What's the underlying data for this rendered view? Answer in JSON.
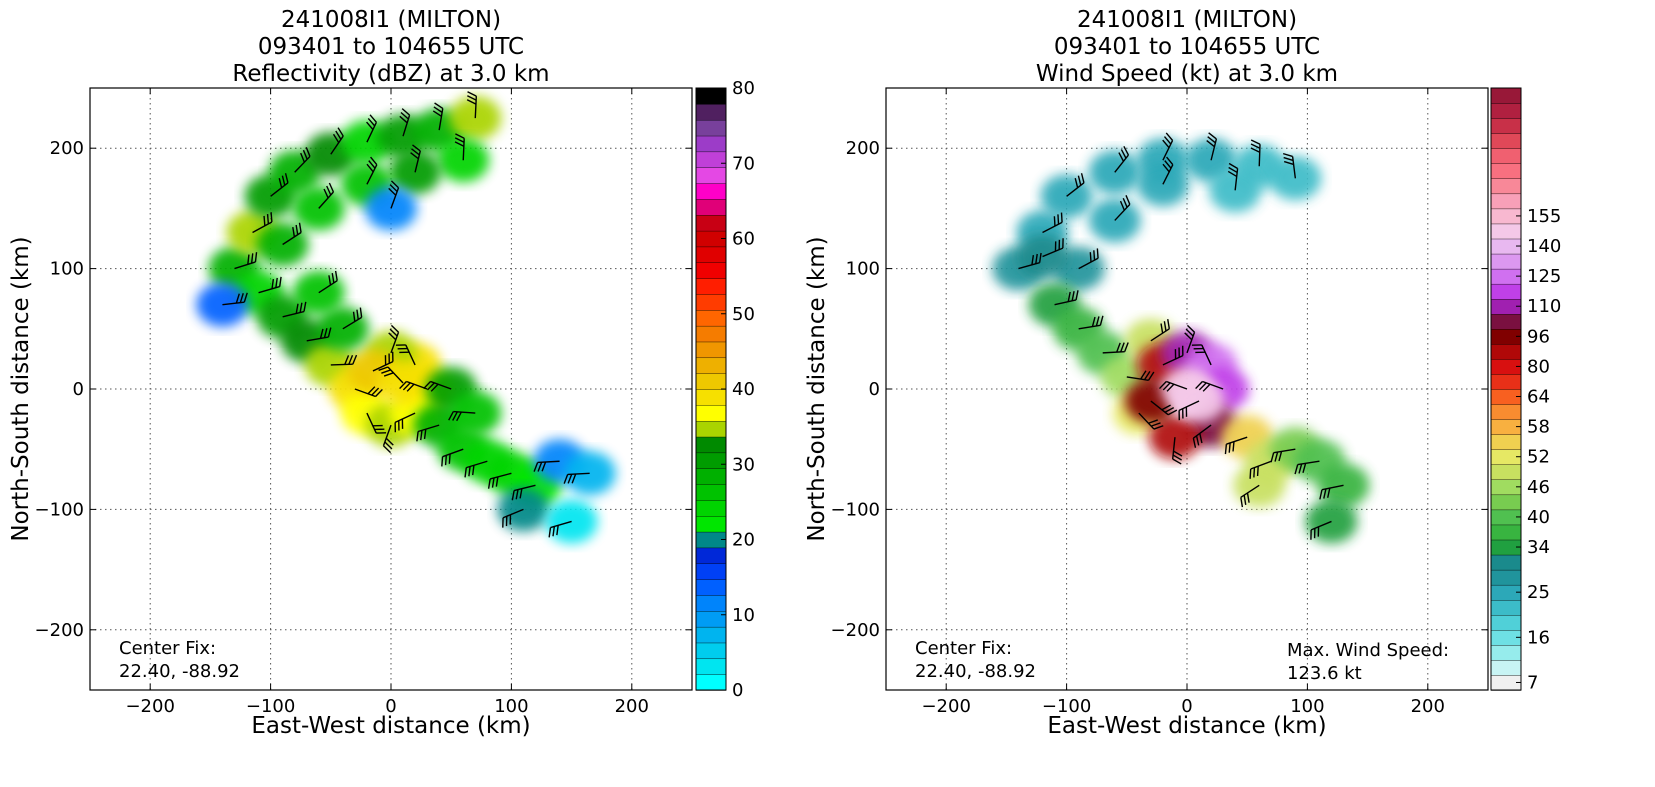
{
  "chart_data": [
    {
      "type": "heatmap",
      "title_lines": [
        "241008I1 (MILTON)",
        "093401 to 104655 UTC",
        "Reflectivity (dBZ) at 3.0 km"
      ],
      "xlabel": "East-West distance (km)",
      "ylabel": "North-South distance (km)",
      "xlim": [
        -250,
        250
      ],
      "ylim": [
        -250,
        250
      ],
      "xticks": [
        -200,
        -100,
        0,
        100,
        200
      ],
      "yticks": [
        -200,
        -100,
        0,
        100,
        200
      ],
      "xtick_labels": [
        "−200",
        "−100",
        "0",
        "100",
        "200"
      ],
      "ytick_labels": [
        "−200",
        "−100",
        "0",
        "100",
        "200"
      ],
      "grid": "dotted",
      "annotation": {
        "line1": "Center Fix:",
        "line2": "22.40, -88.92"
      },
      "colorbar": {
        "labels": [
          "0",
          "10",
          "20",
          "30",
          "40",
          "50",
          "60",
          "70",
          "80"
        ],
        "colors": [
          "#00ffff",
          "#00e5f0",
          "#00cdee",
          "#00b4ef",
          "#009cf5",
          "#0084fb",
          "#0060ff",
          "#0040f5",
          "#0028d8",
          "#008888",
          "#00e600",
          "#00d400",
          "#00c200",
          "#00b000",
          "#009c00",
          "#008a00",
          "#aad400",
          "#ffff00",
          "#f6e000",
          "#eec800",
          "#eeb000",
          "#f09600",
          "#f57c00",
          "#ff6600",
          "#ff3c00",
          "#ff1e00",
          "#f00000",
          "#e00000",
          "#d00000",
          "#c80014",
          "#e00078",
          "#ff00c8",
          "#e448e4",
          "#c040d8",
          "#9c3cc8",
          "#78409c",
          "#502060",
          "#000000"
        ]
      },
      "series": [
        {
          "x": -130,
          "y": 100,
          "dbz": 28
        },
        {
          "x": -115,
          "y": 130,
          "dbz": 35
        },
        {
          "x": -100,
          "y": 160,
          "dbz": 30
        },
        {
          "x": -80,
          "y": 180,
          "dbz": 28
        },
        {
          "x": -50,
          "y": 195,
          "dbz": 32
        },
        {
          "x": -20,
          "y": 205,
          "dbz": 25
        },
        {
          "x": 10,
          "y": 210,
          "dbz": 30
        },
        {
          "x": 40,
          "y": 215,
          "dbz": 28
        },
        {
          "x": 70,
          "y": 225,
          "dbz": 35
        },
        {
          "x": 60,
          "y": 190,
          "dbz": 25
        },
        {
          "x": 20,
          "y": 180,
          "dbz": 30
        },
        {
          "x": -20,
          "y": 170,
          "dbz": 27
        },
        {
          "x": -60,
          "y": 150,
          "dbz": 26
        },
        {
          "x": -90,
          "y": 120,
          "dbz": 29
        },
        {
          "x": -110,
          "y": 80,
          "dbz": 24
        },
        {
          "x": -90,
          "y": 60,
          "dbz": 30
        },
        {
          "x": -70,
          "y": 40,
          "dbz": 33
        },
        {
          "x": -50,
          "y": 20,
          "dbz": 35
        },
        {
          "x": -30,
          "y": 0,
          "dbz": 38
        },
        {
          "x": -20,
          "y": -20,
          "dbz": 36
        },
        {
          "x": 0,
          "y": -30,
          "dbz": 34
        },
        {
          "x": 20,
          "y": -20,
          "dbz": 37
        },
        {
          "x": 30,
          "y": 0,
          "dbz": 36
        },
        {
          "x": 20,
          "y": 20,
          "dbz": 38
        },
        {
          "x": 0,
          "y": 30,
          "dbz": 34
        },
        {
          "x": -15,
          "y": 15,
          "dbz": 40
        },
        {
          "x": 10,
          "y": 5,
          "dbz": 39
        },
        {
          "x": 40,
          "y": -30,
          "dbz": 28
        },
        {
          "x": 60,
          "y": -50,
          "dbz": 26
        },
        {
          "x": 80,
          "y": -60,
          "dbz": 24
        },
        {
          "x": 100,
          "y": -70,
          "dbz": 25
        },
        {
          "x": 120,
          "y": -80,
          "dbz": 22
        },
        {
          "x": 110,
          "y": -100,
          "dbz": 20
        },
        {
          "x": 140,
          "y": -60,
          "dbz": 12
        },
        {
          "x": 50,
          "y": 0,
          "dbz": 30
        },
        {
          "x": 70,
          "y": -20,
          "dbz": 27
        },
        {
          "x": -40,
          "y": 50,
          "dbz": 29
        },
        {
          "x": -60,
          "y": 80,
          "dbz": 26
        },
        {
          "x": -140,
          "y": 70,
          "dbz": 14
        },
        {
          "x": 0,
          "y": 150,
          "dbz": 12
        },
        {
          "x": 150,
          "y": -110,
          "dbz": 3
        },
        {
          "x": 165,
          "y": -70,
          "dbz": 8
        }
      ]
    },
    {
      "type": "heatmap",
      "title_lines": [
        "241008I1 (MILTON)",
        "093401 to 104655 UTC",
        "Wind Speed (kt) at 3.0 km"
      ],
      "xlabel": "East-West distance (km)",
      "ylabel": "North-South distance (km)",
      "xlim": [
        -250,
        250
      ],
      "ylim": [
        -250,
        250
      ],
      "xticks": [
        -200,
        -100,
        0,
        100,
        200
      ],
      "yticks": [
        -200,
        -100,
        0,
        100,
        200
      ],
      "xtick_labels": [
        "−200",
        "−100",
        "0",
        "100",
        "200"
      ],
      "ytick_labels": [
        "−200",
        "−100",
        "0",
        "100",
        "200"
      ],
      "grid": "dotted",
      "annotation": {
        "line1": "Center Fix:",
        "line2": "22.40, -88.92"
      },
      "annotation2": {
        "line1": "Max. Wind Speed:",
        "line2": "123.6 kt"
      },
      "colorbar": {
        "labels": [
          "7",
          "16",
          "25",
          "34",
          "40",
          "46",
          "52",
          "58",
          "64",
          "80",
          "96",
          "110",
          "125",
          "140",
          "155"
        ],
        "label_index": [
          0,
          3,
          6,
          9,
          11,
          13,
          15,
          17,
          19,
          21,
          23,
          25,
          27,
          29,
          31
        ],
        "colors": [
          "#f0f0f0",
          "#c8f4f4",
          "#96ecec",
          "#6ee0e4",
          "#50d0d8",
          "#3cbcc8",
          "#2ca8b8",
          "#20949c",
          "#1a8a8c",
          "#20a040",
          "#38b440",
          "#50c050",
          "#78cc50",
          "#a0dc60",
          "#c8e060",
          "#e6e864",
          "#f0d050",
          "#f8b040",
          "#f88c30",
          "#f86020",
          "#e83018",
          "#d81010",
          "#b00808",
          "#800000",
          "#7a1040",
          "#a020b0",
          "#c040e8",
          "#d070f0",
          "#dc98f0",
          "#e8b8f0",
          "#f4c8e8",
          "#f8b8d0",
          "#f8a0b8",
          "#f88898",
          "#f87080",
          "#f06070",
          "#e04858",
          "#c83048",
          "#b02040",
          "#981838"
        ]
      },
      "series": [
        {
          "x": -140,
          "y": 100,
          "kt": 28
        },
        {
          "x": -120,
          "y": 130,
          "kt": 27
        },
        {
          "x": -100,
          "y": 160,
          "kt": 26
        },
        {
          "x": -60,
          "y": 180,
          "kt": 25
        },
        {
          "x": -20,
          "y": 190,
          "kt": 24
        },
        {
          "x": 20,
          "y": 190,
          "kt": 24
        },
        {
          "x": 60,
          "y": 185,
          "kt": 22
        },
        {
          "x": 90,
          "y": 175,
          "kt": 22
        },
        {
          "x": -90,
          "y": 100,
          "kt": 30
        },
        {
          "x": -110,
          "y": 70,
          "kt": 36
        },
        {
          "x": -90,
          "y": 50,
          "kt": 40
        },
        {
          "x": -70,
          "y": 30,
          "kt": 44
        },
        {
          "x": -50,
          "y": 10,
          "kt": 52
        },
        {
          "x": -40,
          "y": -20,
          "kt": 62
        },
        {
          "x": -30,
          "y": 40,
          "kt": 58
        },
        {
          "x": -20,
          "y": 20,
          "kt": 90
        },
        {
          "x": 0,
          "y": 30,
          "kt": 100
        },
        {
          "x": 20,
          "y": 20,
          "kt": 110
        },
        {
          "x": 30,
          "y": 0,
          "kt": 105
        },
        {
          "x": 20,
          "y": -30,
          "kt": 96
        },
        {
          "x": -10,
          "y": -40,
          "kt": 88
        },
        {
          "x": -30,
          "y": -10,
          "kt": 95
        },
        {
          "x": 0,
          "y": 0,
          "kt": 120
        },
        {
          "x": 10,
          "y": -10,
          "kt": 123
        },
        {
          "x": 50,
          "y": -40,
          "kt": 64
        },
        {
          "x": 70,
          "y": -60,
          "kt": 58
        },
        {
          "x": 90,
          "y": -50,
          "kt": 50
        },
        {
          "x": 110,
          "y": -60,
          "kt": 44
        },
        {
          "x": 130,
          "y": -80,
          "kt": 40
        },
        {
          "x": 120,
          "y": -110,
          "kt": 38
        },
        {
          "x": 60,
          "y": -80,
          "kt": 56
        },
        {
          "x": -20,
          "y": 170,
          "kt": 24
        },
        {
          "x": 40,
          "y": 165,
          "kt": 23
        },
        {
          "x": -120,
          "y": 110,
          "kt": 32
        },
        {
          "x": -60,
          "y": 140,
          "kt": 26
        }
      ]
    }
  ]
}
